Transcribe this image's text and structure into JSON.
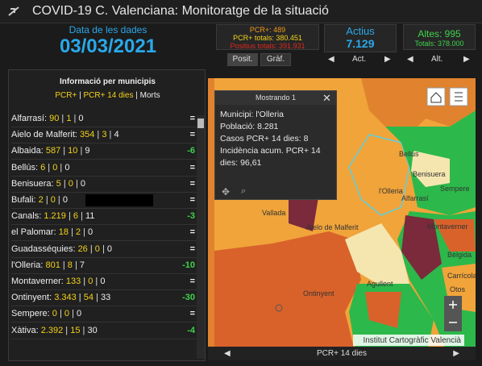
{
  "header": {
    "title": "COVID-19 C. Valenciana: Monitoratge de la situació"
  },
  "date": {
    "label": "Data de les dades",
    "value": "03/03/2021"
  },
  "pcr_box": {
    "pcr": "PCR+: 489",
    "totals": "PCR+ totals: 380.451",
    "positius": "Positius totals: 391.931",
    "buttons": [
      "Posit.",
      "Gràf."
    ]
  },
  "actius_box": {
    "label": "Actius",
    "value": "7.129",
    "button": "Act."
  },
  "altes_box": {
    "label": "Altes: 995",
    "totals": "Totals: 378.000",
    "button": "Alt."
  },
  "list": {
    "title": "Informació per municipis",
    "legend": [
      "PCR+",
      "PCR+ 14 dies",
      "Morts"
    ],
    "rows": [
      {
        "name": "Alfarrasí:",
        "pcr": "90",
        "pcr14": "1",
        "morts": "0",
        "trend": "="
      },
      {
        "name": "Aielo de Malferit:",
        "pcr": "354",
        "pcr14": "3",
        "morts": "4",
        "trend": "="
      },
      {
        "name": "Albaida:",
        "pcr": "587",
        "pcr14": "10",
        "morts": "9",
        "trend": "-6"
      },
      {
        "name": "Bellús:",
        "pcr": "6",
        "pcr14": "0",
        "morts": "0",
        "trend": "="
      },
      {
        "name": "Benisuera:",
        "pcr": "5",
        "pcr14": "0",
        "morts": "0",
        "trend": "="
      },
      {
        "name": "Bufali:",
        "pcr": "2",
        "pcr14": "0",
        "morts": "0",
        "trend": "="
      },
      {
        "name": "Canals:",
        "pcr": "1.219",
        "pcr14": "6",
        "morts": "11",
        "trend": "-3"
      },
      {
        "name": "el Palomar:",
        "pcr": "18",
        "pcr14": "2",
        "morts": "0",
        "trend": "="
      },
      {
        "name": "Guadasséquies:",
        "pcr": "26",
        "pcr14": "0",
        "morts": "0",
        "trend": "="
      },
      {
        "name": "l'Olleria:",
        "pcr": "801",
        "pcr14": "8",
        "morts": "7",
        "trend": "-10"
      },
      {
        "name": "Montaverner:",
        "pcr": "133",
        "pcr14": "0",
        "morts": "0",
        "trend": "="
      },
      {
        "name": "Ontinyent:",
        "pcr": "3.343",
        "pcr14": "54",
        "morts": "33",
        "trend": "-30"
      },
      {
        "name": "Sempere:",
        "pcr": "0",
        "pcr14": "0",
        "morts": "0",
        "trend": "="
      },
      {
        "name": "Xàtiva:",
        "pcr": "2.392",
        "pcr14": "15",
        "morts": "30",
        "trend": "-4"
      }
    ]
  },
  "popup": {
    "header": "Mostrando 1",
    "lines": [
      "Municipi: l'Olleria",
      "Població: 8.281",
      "Casos PCR+ 14 dies: 8",
      "Incidència acum. PCR+ 14 dies: 96,61"
    ]
  },
  "map": {
    "labels": [
      "Bellús",
      "Alfarrasí",
      "Benisuera",
      "Sempere",
      "l'Olleria",
      "Vallada",
      "Aielo de Malferit",
      "Montaverner",
      "Bèlgida",
      "Carrícola",
      "Agullent",
      "Ontinyent",
      "Otos"
    ],
    "attribution": "Institut Cartogràfic Valencià",
    "layer": "PCR+ 14 dies"
  }
}
